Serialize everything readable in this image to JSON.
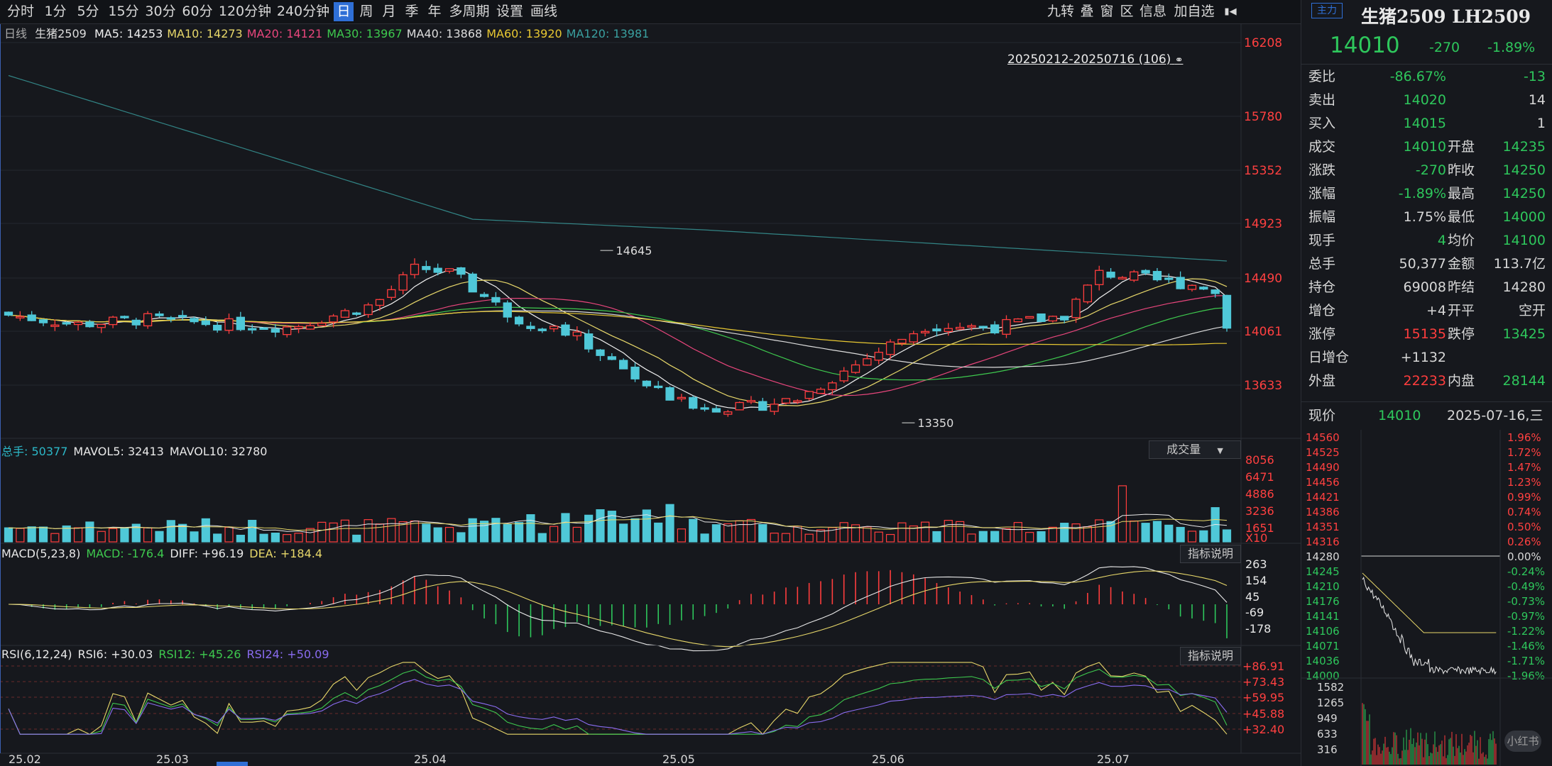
{
  "toolbar": {
    "periods": [
      "分时",
      "1分",
      "5分",
      "15分",
      "30分",
      "60分",
      "120分钟",
      "240分钟",
      "日",
      "周",
      "月",
      "季",
      "年",
      "多周期",
      "设置",
      "画线"
    ],
    "active_period": "日",
    "right_items": [
      "九转",
      "叠",
      "窗",
      "区",
      "信息",
      "加自选"
    ]
  },
  "main_chart": {
    "period_label": "日线",
    "symbol": "生猪2509",
    "ma": [
      {
        "label": "MA5: 14253",
        "color": "#f0f0f0"
      },
      {
        "label": "MA10: 14273",
        "color": "#e8d86a"
      },
      {
        "label": "MA20: 14121",
        "color": "#e8467c"
      },
      {
        "label": "MA30: 13967",
        "color": "#3ec94e"
      },
      {
        "label": "MA40: 13868",
        "color": "#dddddd"
      },
      {
        "label": "MA60: 13920",
        "color": "#e8c832"
      },
      {
        "label": "MA120: 13981",
        "color": "#3aa0a0"
      }
    ],
    "range_label": "20250212-20250716 (106)",
    "high_marker": "14645",
    "low_marker": "13350",
    "price_ticks": [
      "16208",
      "15780",
      "15352",
      "14923",
      "14490",
      "14061",
      "13633"
    ]
  },
  "volume_chart": {
    "header": [
      {
        "label": "总手: 50377",
        "color": "#2cb8c8"
      },
      {
        "label": "MAVOL5: 32413",
        "color": "#e8e8e8"
      },
      {
        "label": "MAVOL10: 32780",
        "color": "#e8e8e8"
      }
    ],
    "dropdown": "成交量",
    "ticks": [
      "8056",
      "6471",
      "4886",
      "3236",
      "1651",
      "X10"
    ]
  },
  "macd_chart": {
    "header": [
      {
        "label": "MACD(5,23,8)",
        "color": "#e8e8e8"
      },
      {
        "label": "MACD: -176.4",
        "color": "#3ec94e"
      },
      {
        "label": "DIFF: +96.19",
        "color": "#e8e8e8"
      },
      {
        "label": "DEA: +184.4",
        "color": "#e8d86a"
      }
    ],
    "button": "指标说明",
    "ticks": [
      "263",
      "154",
      "45",
      "-69",
      "-178"
    ]
  },
  "rsi_chart": {
    "header": [
      {
        "label": "RSI(6,12,24)",
        "color": "#e8e8e8"
      },
      {
        "label": "RSI6: +30.03",
        "color": "#e8e8e8"
      },
      {
        "label": "RSI12: +45.26",
        "color": "#3ec94e"
      },
      {
        "label": "RSI24: +50.09",
        "color": "#8a6cf0"
      }
    ],
    "button": "指标说明",
    "ticks": [
      "+86.91",
      "+73.43",
      "+59.95",
      "+45.88",
      "+32.40"
    ]
  },
  "date_axis": [
    "25.02",
    "25.03",
    "25.04",
    "25.05",
    "25.06",
    "25.07"
  ],
  "sidebar": {
    "badge": "主力",
    "title": "生猪2509 LH2509",
    "price": "14010",
    "change": "-270",
    "change_pct": "-1.89%",
    "rows": [
      {
        "l": "委比",
        "v": "-86.67%",
        "vc": "grn",
        "l2": "",
        "v2": "-13",
        "v2c": "grn"
      },
      {
        "l": "卖出",
        "v": "14020",
        "vc": "grn",
        "l2": "",
        "v2": "14",
        "v2c": "wht"
      },
      {
        "l": "买入",
        "v": "14015",
        "vc": "grn",
        "l2": "",
        "v2": "1",
        "v2c": "wht"
      },
      {
        "l": "成交",
        "v": "14010",
        "vc": "grn",
        "l2": "开盘",
        "v2": "14235",
        "v2c": "grn"
      },
      {
        "l": "涨跌",
        "v": "-270",
        "vc": "grn",
        "l2": "昨收",
        "v2": "14250",
        "v2c": "grn"
      },
      {
        "l": "涨幅",
        "v": "-1.89%",
        "vc": "grn",
        "l2": "最高",
        "v2": "14250",
        "v2c": "grn"
      },
      {
        "l": "振幅",
        "v": "1.75%",
        "vc": "wht",
        "l2": "最低",
        "v2": "14000",
        "v2c": "grn"
      },
      {
        "l": "现手",
        "v": "4",
        "vc": "grn",
        "l2": "均价",
        "v2": "14100",
        "v2c": "grn"
      },
      {
        "l": "总手",
        "v": "50,377",
        "vc": "wht",
        "l2": "金额",
        "v2": "113.7亿",
        "v2c": "wht"
      },
      {
        "l": "持仓",
        "v": "69008",
        "vc": "wht",
        "l2": "昨结",
        "v2": "14280",
        "v2c": "wht"
      },
      {
        "l": "增仓",
        "v": "+4",
        "vc": "wht",
        "l2": "开平",
        "v2": "空开",
        "v2c": "wht"
      },
      {
        "l": "涨停",
        "v": "15135",
        "vc": "red",
        "l2": "跌停",
        "v2": "13425",
        "v2c": "grn"
      },
      {
        "l": "日增仓",
        "v": "+1132",
        "vc": "wht",
        "l2": "",
        "v2": "",
        "v2c": "wht"
      },
      {
        "l": "外盘",
        "v": "22233",
        "vc": "red",
        "l2": "内盘",
        "v2": "28144",
        "v2c": "grn"
      }
    ],
    "current_label": "现价",
    "current_price": "14010",
    "current_date": "2025-07-16,三",
    "mini_left": [
      "14560",
      "14525",
      "14490",
      "14456",
      "14421",
      "14386",
      "14351",
      "14316",
      "14280",
      "14245",
      "14210",
      "14176",
      "14141",
      "14106",
      "14071",
      "14036",
      "14000"
    ],
    "mini_right": [
      "1.96%",
      "1.72%",
      "1.47%",
      "1.23%",
      "0.99%",
      "0.74%",
      "0.50%",
      "0.26%",
      "0.00%",
      "-0.24%",
      "-0.49%",
      "-0.73%",
      "-0.97%",
      "-1.22%",
      "-1.46%",
      "-1.71%",
      "-1.96%"
    ],
    "mini_vol": [
      "1582",
      "1265",
      "949",
      "633",
      "316"
    ],
    "watermark": "小红书"
  }
}
